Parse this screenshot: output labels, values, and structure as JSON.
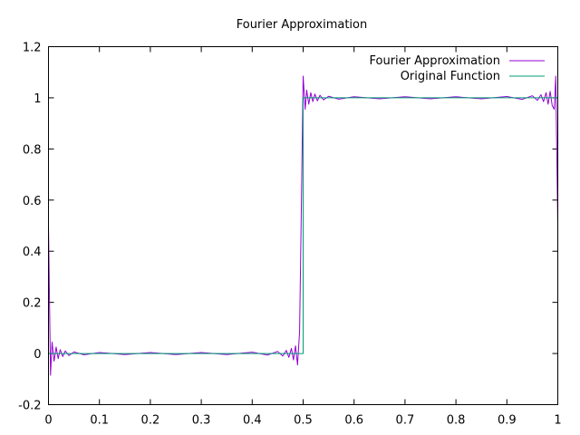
{
  "chart_data": {
    "type": "line",
    "title": "Fourier Approximation",
    "xlabel": "",
    "ylabel": "",
    "xlim": [
      0,
      1
    ],
    "ylim": [
      -0.2,
      1.2
    ],
    "xticks": [
      0,
      0.1,
      0.2,
      0.3,
      0.4,
      0.5,
      0.6,
      0.7,
      0.8,
      0.9,
      1
    ],
    "xtick_labels": [
      "0",
      "0.1",
      "0.2",
      "0.3",
      "0.4",
      "0.5",
      "0.6",
      "0.7",
      "0.8",
      "0.9",
      "1"
    ],
    "yticks": [
      -0.2,
      0,
      0.2,
      0.4,
      0.6,
      0.8,
      1,
      1.2
    ],
    "ytick_labels": [
      "-0.2",
      "0",
      "0.2",
      "0.4",
      "0.6",
      "0.8",
      "1",
      "1.2"
    ],
    "grid": false,
    "legend_position": "top-right",
    "series": [
      {
        "name": "Fourier Approximation",
        "color": "#9400d3",
        "x": [
          0,
          0.004,
          0.007,
          0.011,
          0.015,
          0.019,
          0.023,
          0.028,
          0.033,
          0.04,
          0.05,
          0.07,
          0.1,
          0.15,
          0.2,
          0.25,
          0.3,
          0.35,
          0.4,
          0.43,
          0.45,
          0.46,
          0.467,
          0.472,
          0.477,
          0.481,
          0.485,
          0.489,
          0.493,
          0.496,
          0.5,
          0.504,
          0.507,
          0.511,
          0.515,
          0.519,
          0.523,
          0.528,
          0.533,
          0.54,
          0.55,
          0.57,
          0.6,
          0.65,
          0.7,
          0.75,
          0.8,
          0.85,
          0.9,
          0.93,
          0.95,
          0.96,
          0.967,
          0.972,
          0.977,
          0.981,
          0.985,
          0.989,
          0.993,
          0.996,
          1
        ],
        "y": [
          0.5,
          -0.085,
          0.045,
          -0.03,
          0.025,
          -0.02,
          0.015,
          -0.012,
          0.01,
          -0.008,
          0.006,
          -0.005,
          0.004,
          -0.004,
          0.004,
          -0.004,
          0.004,
          -0.004,
          0.005,
          -0.006,
          0.008,
          -0.01,
          0.012,
          -0.015,
          0.02,
          -0.025,
          0.03,
          -0.045,
          0.085,
          0.5,
          1.085,
          0.955,
          1.03,
          0.975,
          1.02,
          0.985,
          1.015,
          0.988,
          1.01,
          0.992,
          1.006,
          0.995,
          1.004,
          0.996,
          1.004,
          0.996,
          1.004,
          0.996,
          1.005,
          0.994,
          1.008,
          0.99,
          1.012,
          0.985,
          1.02,
          0.975,
          1.025,
          0.97,
          0.955,
          1.085,
          0.5
        ]
      },
      {
        "name": "Original Function",
        "color": "#009e73",
        "x": [
          0,
          0.5,
          0.5,
          1
        ],
        "y": [
          0,
          0,
          1,
          1
        ]
      }
    ]
  }
}
